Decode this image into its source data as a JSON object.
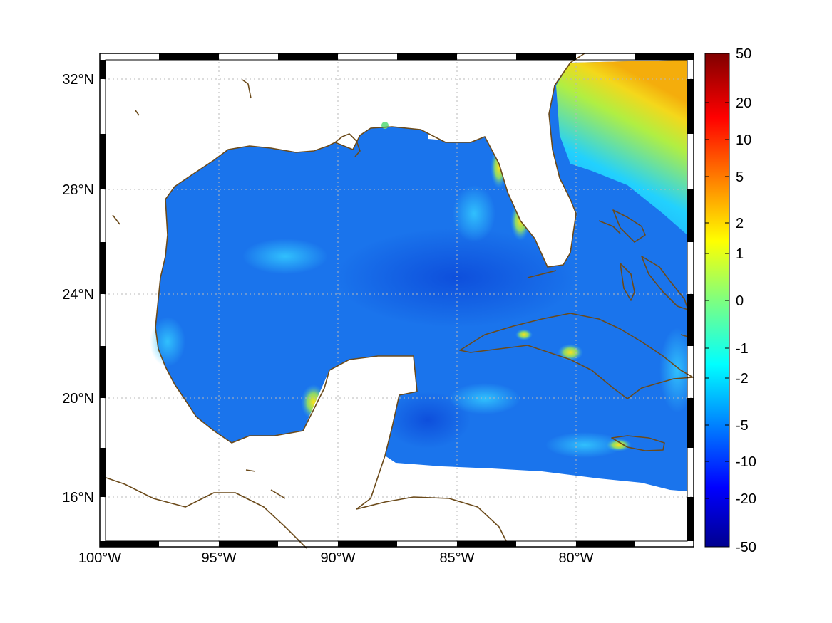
{
  "map": {
    "region": "Gulf of Mexico and Caribbean",
    "lon_range": [
      -100,
      -75
    ],
    "lat_range": [
      14,
      33
    ],
    "lon_ticks": [
      {
        "value": -100,
        "label": "100°W"
      },
      {
        "value": -95,
        "label": "95°W"
      },
      {
        "value": -90,
        "label": "90°W"
      },
      {
        "value": -85,
        "label": "85°W"
      },
      {
        "value": -80,
        "label": "80°W"
      }
    ],
    "lat_ticks": [
      {
        "value": 16,
        "label": "16°N"
      },
      {
        "value": 20,
        "label": "20°N"
      },
      {
        "value": 24,
        "label": "24°N"
      },
      {
        "value": 28,
        "label": "28°N"
      },
      {
        "value": 32,
        "label": "32°N"
      }
    ],
    "grid": "dotted",
    "coast_color": "#6b4a1a"
  },
  "colorbar": {
    "labels": [
      "50",
      "20",
      "10",
      "5",
      "2",
      "1",
      "0",
      "-1",
      "-2",
      "-5",
      "-10",
      "-20",
      "-50"
    ],
    "colormap": "jet",
    "range": [
      -50,
      50
    ]
  },
  "colors": {
    "ocean_base": "#1b6fe8",
    "ocean_deep": "#0a55e0",
    "warm_anomaly": "#ffd21a",
    "cool_anomaly": "#1ab7ff"
  }
}
